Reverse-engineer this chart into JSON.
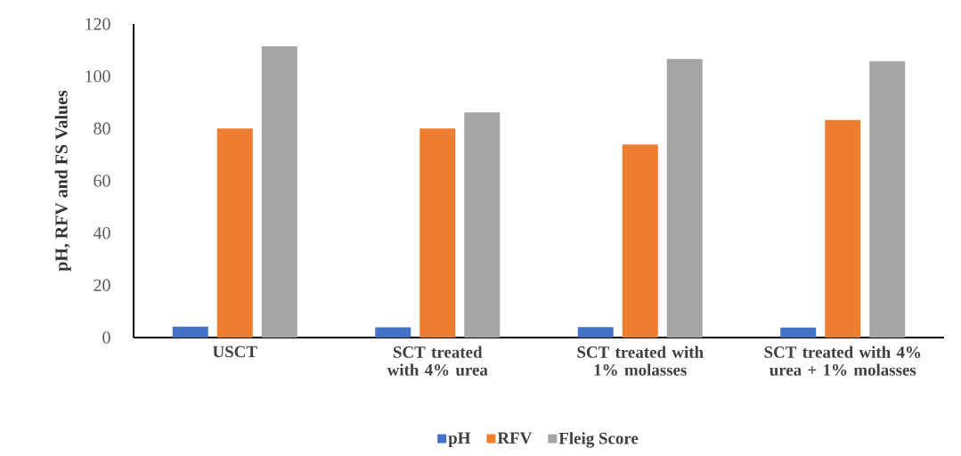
{
  "chart_data": {
    "type": "bar",
    "ylabel": "pH, RFV and FS Values",
    "categories": [
      "USCT",
      "SCT treated with 4% urea",
      "SCT treated with 1% molasses",
      "SCT treated with 4% urea + 1% molasses"
    ],
    "series": [
      {
        "name": "pH",
        "color": "#4472c4",
        "values": [
          4.2,
          3.9,
          4.0,
          3.8
        ]
      },
      {
        "name": "RFV",
        "color": "#ed7d31",
        "values": [
          80,
          80,
          73.9,
          83.3
        ]
      },
      {
        "name": "Fleig Score",
        "color": "#a5a5a5",
        "values": [
          111.5,
          86.2,
          106.6,
          105.8
        ]
      }
    ],
    "ylim": [
      0,
      120
    ],
    "yticks": [
      0,
      20,
      40,
      60,
      80,
      100,
      120
    ],
    "legend": "bottom"
  }
}
